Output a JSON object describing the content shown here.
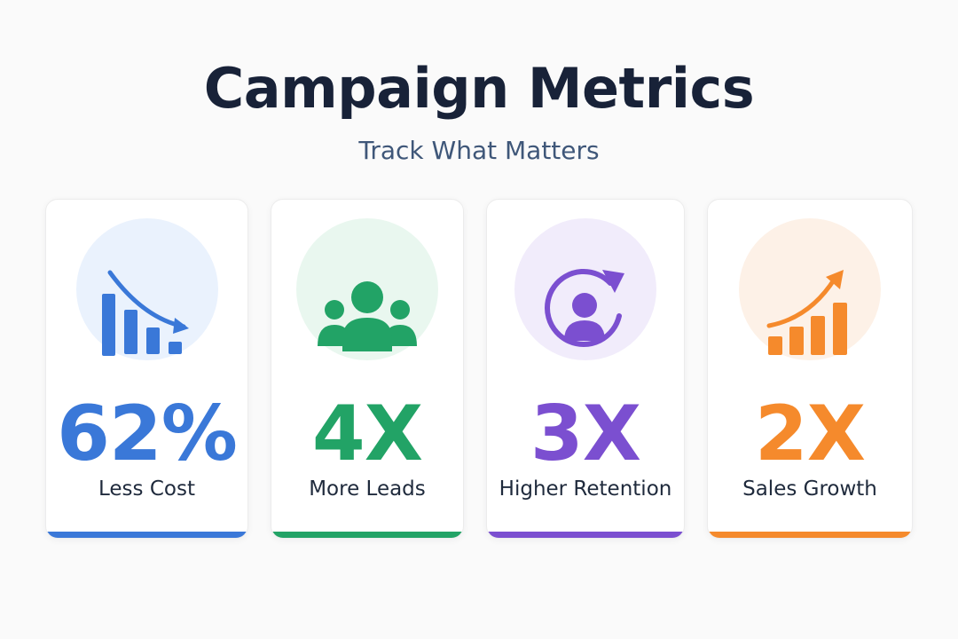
{
  "header": {
    "title": "Campaign Metrics",
    "subtitle": "Track What Matters"
  },
  "cards": [
    {
      "value": "62%",
      "label": "Less Cost",
      "icon": "bar-chart-decrease-icon",
      "accent_color": "#3a78d8",
      "tint_color": "#eaf2fd"
    },
    {
      "value": "4X",
      "label": "More Leads",
      "icon": "users-group-icon",
      "accent_color": "#22a366",
      "tint_color": "#e9f7ef"
    },
    {
      "value": "3X",
      "label": "Higher Retention",
      "icon": "user-refresh-icon",
      "accent_color": "#7b4fd0",
      "tint_color": "#f1ecfb"
    },
    {
      "value": "2X",
      "label": "Sales Growth",
      "icon": "bar-chart-growth-icon",
      "accent_color": "#f58a2c",
      "tint_color": "#fdf1e7"
    }
  ]
}
